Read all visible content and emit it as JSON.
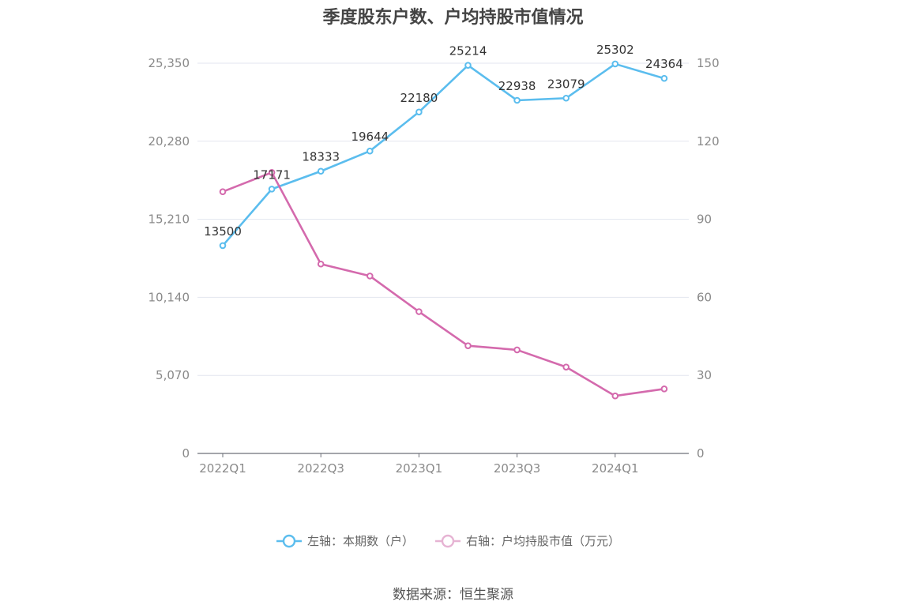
{
  "chart_data": {
    "type": "line",
    "title": "季度股东户数、户均持股市值情况",
    "categories": [
      "2022Q1",
      "2022Q2",
      "2022Q3",
      "2022Q4",
      "2023Q1",
      "2023Q2",
      "2023Q3",
      "2023Q4",
      "2024Q1",
      "2024Q2"
    ],
    "x_tick_labels": [
      "2022Q1",
      "2022Q3",
      "2023Q1",
      "2023Q3",
      "2024Q1"
    ],
    "left_axis": {
      "ticks": [
        "0",
        "5,070",
        "10,140",
        "15,210",
        "20,280",
        "25,350"
      ],
      "ylim": [
        0,
        25350
      ]
    },
    "right_axis": {
      "ticks": [
        "0",
        "30",
        "60",
        "90",
        "120",
        "150"
      ],
      "ylim": [
        0,
        150
      ]
    },
    "series": [
      {
        "name": "左轴：本期数（户）",
        "axis": "left",
        "color": "#5bbdee",
        "values": [
          13500,
          17171,
          18333,
          19644,
          22180,
          25214,
          22938,
          23079,
          25302,
          24364
        ],
        "labels": [
          "13500",
          "17171",
          "18333",
          "19644",
          "22180",
          "25214",
          "22938",
          "23079",
          "25302",
          "24364"
        ]
      },
      {
        "name": "右轴：户均持股市值（万元）",
        "axis": "right",
        "color": "#d46aad",
        "values": [
          100.6,
          108.0,
          72.8,
          68.2,
          54.5,
          41.4,
          39.8,
          33.2,
          22.1,
          24.8
        ]
      }
    ],
    "legend_position": "bottom",
    "grid": true
  },
  "source": "数据来源：恒生聚源"
}
